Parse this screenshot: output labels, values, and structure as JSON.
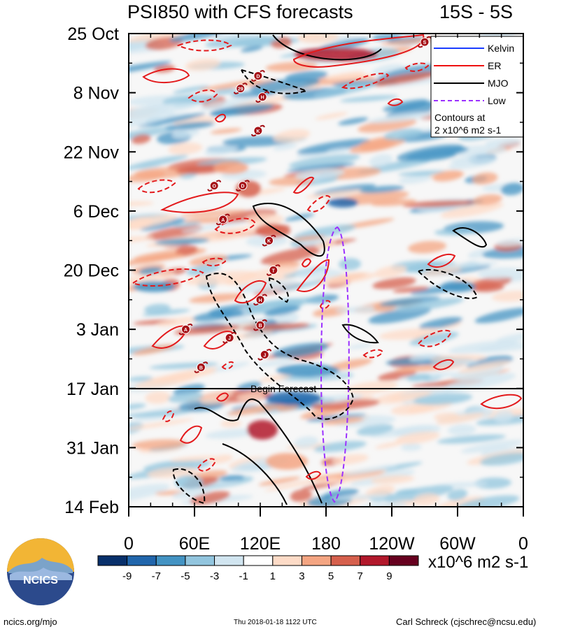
{
  "header": {
    "title": "PSI850 with CFS forecasts",
    "region": "15S - 5S"
  },
  "chart_data": {
    "type": "heatmap",
    "title": "PSI850 with CFS forecasts",
    "subtitle": "15S - 5S",
    "x_ticks": [
      "0",
      "60E",
      "120E",
      "180",
      "120W",
      "60W",
      "0"
    ],
    "x_range_deg_east": [
      0,
      360
    ],
    "y_ticks": [
      "25 Oct",
      "8 Nov",
      "22 Nov",
      "6 Dec",
      "20 Dec",
      "3 Jan",
      "17 Jan",
      "31 Jan",
      "14 Feb"
    ],
    "y_range": [
      "25 Oct",
      "14 Feb"
    ],
    "y_direction": "time increases downward",
    "forecast_start": "17 Jan",
    "forecast_label": "Begin Forecast",
    "colorbar": {
      "labels": [
        "-9",
        "-7",
        "-5",
        "-3",
        "-1",
        "1",
        "3",
        "5",
        "7",
        "9"
      ],
      "units": "x10^6 m2 s-1",
      "colors": [
        "#08306b",
        "#2166ac",
        "#4393c3",
        "#92c5de",
        "#d1e5f0",
        "#ffffff",
        "#fddbc7",
        "#f4a582",
        "#d6604d",
        "#b2182b",
        "#67001f"
      ]
    },
    "legend": {
      "placement": "top-right",
      "items": [
        {
          "name": "Kelvin",
          "color": "#1a3cff",
          "style": "solid"
        },
        {
          "name": "ER",
          "color": "#ee1111",
          "style": "solid"
        },
        {
          "name": "MJO",
          "color": "#000000",
          "style": "solid"
        },
        {
          "name": "Low",
          "color": "#9b30ff",
          "style": "dashed"
        }
      ],
      "note_line1": "Contours at",
      "note_line2": "2 x10^6 m2 s-1"
    },
    "cyclone_markers": [
      {
        "letter": "S",
        "lon": 270,
        "date": "27 Oct"
      },
      {
        "letter": "D",
        "lon": 118,
        "date": "4 Nov"
      },
      {
        "letter": "29",
        "lon": 102,
        "date": "7 Nov"
      },
      {
        "letter": "H",
        "lon": 122,
        "date": "9 Nov"
      },
      {
        "letter": "K",
        "lon": 118,
        "date": "17 Nov"
      },
      {
        "letter": "O",
        "lon": 78,
        "date": "30 Nov"
      },
      {
        "letter": "D",
        "lon": 104,
        "date": "30 Nov"
      },
      {
        "letter": "A",
        "lon": 86,
        "date": "8 Dec"
      },
      {
        "letter": "K",
        "lon": 128,
        "date": "13 Dec"
      },
      {
        "letter": "T",
        "lon": 132,
        "date": "20 Dec"
      },
      {
        "letter": "H",
        "lon": 120,
        "date": "27 Dec"
      },
      {
        "letter": "B",
        "lon": 120,
        "date": "2 Jan"
      },
      {
        "letter": "A",
        "lon": 52,
        "date": "3 Jan"
      },
      {
        "letter": "J",
        "lon": 92,
        "date": "5 Jan"
      },
      {
        "letter": "J",
        "lon": 124,
        "date": "9 Jan"
      },
      {
        "letter": "B",
        "lon": 66,
        "date": "12 Jan"
      }
    ]
  },
  "footer": {
    "logo_text": "NCICS",
    "url": "ncics.org/mjo",
    "timestamp": "Thu 2018-01-18 1122 UTC",
    "author": "Carl Schreck (cjschrec@ncsu.edu)"
  }
}
